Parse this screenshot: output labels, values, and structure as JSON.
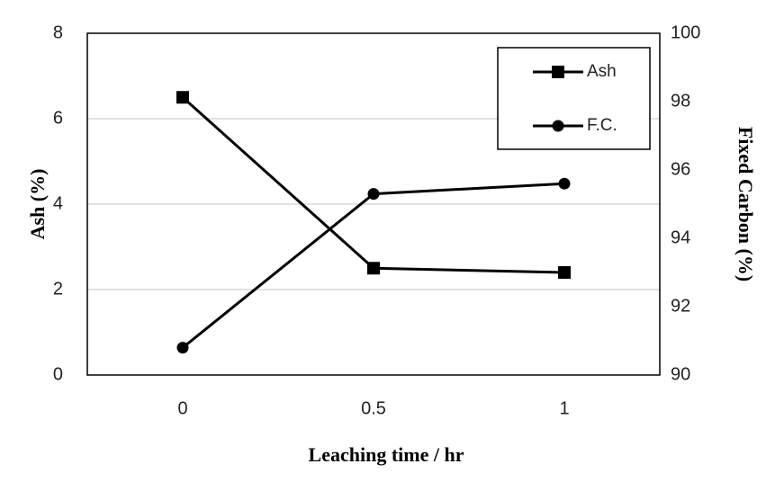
{
  "chart_data": {
    "type": "line",
    "title": "",
    "xlabel": "Leaching time / hr",
    "ylabel_left": "Ash (%)",
    "ylabel_right": "Fixed Carbon (%)",
    "x": [
      0,
      0.5,
      1
    ],
    "x_tick_labels": [
      "0",
      "0.5",
      "1"
    ],
    "xlim": [
      -0.25,
      1.25
    ],
    "ylim_left": [
      0,
      8
    ],
    "ylim_right": [
      90,
      100
    ],
    "y_left_ticks": [
      "0",
      "2",
      "4",
      "6",
      "8"
    ],
    "y_right_ticks": [
      "90",
      "92",
      "94",
      "96",
      "98",
      "100"
    ],
    "grid": "horizontal",
    "legend_position": "top-right",
    "series": [
      {
        "name": "Ash",
        "axis": "left",
        "marker": "square",
        "values": [
          6.5,
          2.5,
          2.4
        ]
      },
      {
        "name": "F.C.",
        "axis": "right",
        "marker": "circle",
        "values": [
          90.8,
          95.3,
          95.6
        ]
      }
    ],
    "colors": {
      "line": "#000000",
      "grid": "#d9d9d9",
      "frame": "#000000"
    }
  }
}
